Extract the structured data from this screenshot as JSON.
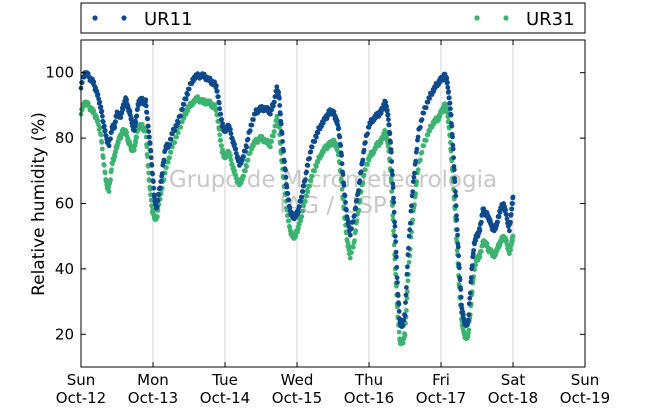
{
  "chart_data": {
    "type": "scatter",
    "title": "",
    "xlabel": "",
    "ylabel": "Relative humidity (%)",
    "ylim": [
      10,
      110
    ],
    "yticks": [
      20,
      40,
      60,
      80,
      100
    ],
    "x_unit": "days",
    "xlim": [
      0,
      7
    ],
    "xticks": [
      {
        "day": "Sun",
        "date": "Oct-12"
      },
      {
        "day": "Mon",
        "date": "Oct-13"
      },
      {
        "day": "Tue",
        "date": "Oct-14"
      },
      {
        "day": "Wed",
        "date": "Oct-15"
      },
      {
        "day": "Thu",
        "date": "Oct-16"
      },
      {
        "day": "Fri",
        "date": "Oct-17"
      },
      {
        "day": "Sat",
        "date": "Oct-18"
      },
      {
        "day": "Sun",
        "date": "Oct-19"
      }
    ],
    "grid": "vertical",
    "legend_placement": "top, outside plot",
    "watermark": [
      "Grupo de Micrometeorologia",
      "IAG / USP"
    ],
    "series": [
      {
        "name": "UR11",
        "color": "#0d4a8c",
        "points": [
          [
            0.0,
            96
          ],
          [
            0.05,
            100
          ],
          [
            0.1,
            99
          ],
          [
            0.17,
            97
          ],
          [
            0.22,
            94
          ],
          [
            0.27,
            90
          ],
          [
            0.31,
            85
          ],
          [
            0.35,
            80
          ],
          [
            0.39,
            78
          ],
          [
            0.43,
            83
          ],
          [
            0.47,
            84
          ],
          [
            0.5,
            88
          ],
          [
            0.54,
            86
          ],
          [
            0.58,
            89
          ],
          [
            0.62,
            92
          ],
          [
            0.66,
            89
          ],
          [
            0.7,
            86
          ],
          [
            0.73,
            82
          ],
          [
            0.76,
            85
          ],
          [
            0.79,
            90
          ],
          [
            0.83,
            92
          ],
          [
            0.87,
            91
          ],
          [
            0.9,
            91
          ],
          [
            0.93,
            84
          ],
          [
            0.96,
            78
          ],
          [
            0.99,
            70
          ],
          [
            1.02,
            62
          ],
          [
            1.05,
            58
          ],
          [
            1.08,
            63
          ],
          [
            1.12,
            68
          ],
          [
            1.17,
            77
          ],
          [
            1.22,
            78
          ],
          [
            1.28,
            82
          ],
          [
            1.35,
            85
          ],
          [
            1.42,
            90
          ],
          [
            1.48,
            94
          ],
          [
            1.55,
            98
          ],
          [
            1.62,
            99
          ],
          [
            1.7,
            99
          ],
          [
            1.77,
            98
          ],
          [
            1.83,
            97
          ],
          [
            1.88,
            96
          ],
          [
            1.92,
            90
          ],
          [
            1.96,
            84
          ],
          [
            2.0,
            82
          ],
          [
            2.05,
            84
          ],
          [
            2.1,
            80
          ],
          [
            2.15,
            76
          ],
          [
            2.2,
            72
          ],
          [
            2.25,
            74
          ],
          [
            2.3,
            78
          ],
          [
            2.36,
            84
          ],
          [
            2.43,
            88
          ],
          [
            2.5,
            89
          ],
          [
            2.57,
            89
          ],
          [
            2.63,
            88
          ],
          [
            2.68,
            91
          ],
          [
            2.72,
            95
          ],
          [
            2.75,
            93
          ],
          [
            2.78,
            84
          ],
          [
            2.82,
            74
          ],
          [
            2.86,
            65
          ],
          [
            2.9,
            58
          ],
          [
            2.94,
            56
          ],
          [
            2.98,
            56
          ],
          [
            3.02,
            58
          ],
          [
            3.06,
            62
          ],
          [
            3.1,
            66
          ],
          [
            3.15,
            72
          ],
          [
            3.2,
            77
          ],
          [
            3.27,
            81
          ],
          [
            3.33,
            84
          ],
          [
            3.4,
            86
          ],
          [
            3.45,
            88
          ],
          [
            3.5,
            88
          ],
          [
            3.54,
            86
          ],
          [
            3.58,
            83
          ],
          [
            3.62,
            74
          ],
          [
            3.66,
            63
          ],
          [
            3.7,
            55
          ],
          [
            3.74,
            51
          ],
          [
            3.79,
            56
          ],
          [
            3.84,
            62
          ],
          [
            3.89,
            70
          ],
          [
            3.94,
            78
          ],
          [
            4.0,
            84
          ],
          [
            4.06,
            86
          ],
          [
            4.12,
            87
          ],
          [
            4.17,
            88
          ],
          [
            4.22,
            91
          ],
          [
            4.25,
            89
          ],
          [
            4.28,
            84
          ],
          [
            4.31,
            75
          ],
          [
            4.34,
            62
          ],
          [
            4.37,
            48
          ],
          [
            4.4,
            33
          ],
          [
            4.43,
            24
          ],
          [
            4.46,
            22
          ],
          [
            4.5,
            26
          ],
          [
            4.54,
            44
          ],
          [
            4.59,
            60
          ],
          [
            4.64,
            72
          ],
          [
            4.69,
            82
          ],
          [
            4.76,
            88
          ],
          [
            4.83,
            92
          ],
          [
            4.9,
            95
          ],
          [
            4.96,
            97
          ],
          [
            5.01,
            98
          ],
          [
            5.05,
            99
          ],
          [
            5.08,
            98
          ],
          [
            5.11,
            93
          ],
          [
            5.14,
            87
          ],
          [
            5.17,
            76
          ],
          [
            5.2,
            64
          ],
          [
            5.23,
            50
          ],
          [
            5.26,
            38
          ],
          [
            5.29,
            28
          ],
          [
            5.32,
            24
          ],
          [
            5.35,
            23
          ],
          [
            5.38,
            24
          ],
          [
            5.42,
            38
          ],
          [
            5.46,
            48
          ],
          [
            5.5,
            50
          ],
          [
            5.54,
            52
          ],
          [
            5.58,
            58
          ],
          [
            5.62,
            57
          ],
          [
            5.66,
            56
          ],
          [
            5.7,
            53
          ],
          [
            5.74,
            52
          ],
          [
            5.78,
            54
          ],
          [
            5.82,
            58
          ],
          [
            5.87,
            60
          ],
          [
            5.91,
            56
          ],
          [
            5.95,
            52
          ],
          [
            5.98,
            58
          ],
          [
            6.0,
            62
          ]
        ]
      },
      {
        "name": "UR31",
        "color": "#3cb371",
        "points": [
          [
            0.0,
            88
          ],
          [
            0.05,
            91
          ],
          [
            0.1,
            90
          ],
          [
            0.17,
            88
          ],
          [
            0.22,
            86
          ],
          [
            0.27,
            82
          ],
          [
            0.31,
            74
          ],
          [
            0.35,
            66
          ],
          [
            0.39,
            64
          ],
          [
            0.43,
            72
          ],
          [
            0.47,
            75
          ],
          [
            0.5,
            78
          ],
          [
            0.54,
            80
          ],
          [
            0.58,
            82
          ],
          [
            0.62,
            82
          ],
          [
            0.66,
            79
          ],
          [
            0.7,
            77
          ],
          [
            0.73,
            76
          ],
          [
            0.76,
            79
          ],
          [
            0.79,
            83
          ],
          [
            0.83,
            84
          ],
          [
            0.87,
            83
          ],
          [
            0.9,
            82
          ],
          [
            0.93,
            72
          ],
          [
            0.96,
            64
          ],
          [
            0.99,
            58
          ],
          [
            1.02,
            56
          ],
          [
            1.05,
            55
          ],
          [
            1.08,
            60
          ],
          [
            1.12,
            64
          ],
          [
            1.17,
            70
          ],
          [
            1.22,
            74
          ],
          [
            1.28,
            78
          ],
          [
            1.35,
            82
          ],
          [
            1.42,
            86
          ],
          [
            1.48,
            89
          ],
          [
            1.55,
            91
          ],
          [
            1.62,
            92
          ],
          [
            1.7,
            91
          ],
          [
            1.77,
            91
          ],
          [
            1.83,
            90
          ],
          [
            1.88,
            89
          ],
          [
            1.92,
            82
          ],
          [
            1.96,
            76
          ],
          [
            2.0,
            74
          ],
          [
            2.05,
            76
          ],
          [
            2.1,
            72
          ],
          [
            2.15,
            68
          ],
          [
            2.2,
            66
          ],
          [
            2.25,
            68
          ],
          [
            2.3,
            72
          ],
          [
            2.36,
            77
          ],
          [
            2.43,
            79
          ],
          [
            2.5,
            80
          ],
          [
            2.57,
            79
          ],
          [
            2.63,
            78
          ],
          [
            2.68,
            82
          ],
          [
            2.72,
            86
          ],
          [
            2.75,
            84
          ],
          [
            2.78,
            75
          ],
          [
            2.82,
            66
          ],
          [
            2.86,
            58
          ],
          [
            2.9,
            52
          ],
          [
            2.94,
            50
          ],
          [
            2.98,
            50
          ],
          [
            3.02,
            53
          ],
          [
            3.06,
            56
          ],
          [
            3.1,
            60
          ],
          [
            3.15,
            64
          ],
          [
            3.2,
            68
          ],
          [
            3.27,
            72
          ],
          [
            3.33,
            75
          ],
          [
            3.4,
            77
          ],
          [
            3.45,
            78
          ],
          [
            3.5,
            79
          ],
          [
            3.54,
            78
          ],
          [
            3.58,
            75
          ],
          [
            3.62,
            66
          ],
          [
            3.66,
            56
          ],
          [
            3.7,
            48
          ],
          [
            3.74,
            44
          ],
          [
            3.79,
            48
          ],
          [
            3.84,
            56
          ],
          [
            3.89,
            64
          ],
          [
            3.94,
            70
          ],
          [
            4.0,
            74
          ],
          [
            4.06,
            76
          ],
          [
            4.12,
            78
          ],
          [
            4.17,
            79
          ],
          [
            4.22,
            82
          ],
          [
            4.25,
            80
          ],
          [
            4.28,
            76
          ],
          [
            4.31,
            66
          ],
          [
            4.34,
            52
          ],
          [
            4.37,
            38
          ],
          [
            4.4,
            26
          ],
          [
            4.43,
            18
          ],
          [
            4.46,
            17
          ],
          [
            4.5,
            20
          ],
          [
            4.54,
            36
          ],
          [
            4.59,
            52
          ],
          [
            4.64,
            62
          ],
          [
            4.69,
            72
          ],
          [
            4.76,
            78
          ],
          [
            4.83,
            82
          ],
          [
            4.9,
            85
          ],
          [
            4.96,
            86
          ],
          [
            5.01,
            88
          ],
          [
            5.05,
            90
          ],
          [
            5.08,
            89
          ],
          [
            5.11,
            84
          ],
          [
            5.14,
            76
          ],
          [
            5.17,
            66
          ],
          [
            5.2,
            56
          ],
          [
            5.23,
            44
          ],
          [
            5.26,
            32
          ],
          [
            5.29,
            24
          ],
          [
            5.32,
            20
          ],
          [
            5.35,
            19
          ],
          [
            5.38,
            20
          ],
          [
            5.42,
            30
          ],
          [
            5.46,
            40
          ],
          [
            5.5,
            43
          ],
          [
            5.54,
            44
          ],
          [
            5.58,
            48
          ],
          [
            5.62,
            48
          ],
          [
            5.66,
            46
          ],
          [
            5.7,
            45
          ],
          [
            5.74,
            44
          ],
          [
            5.78,
            46
          ],
          [
            5.82,
            48
          ],
          [
            5.87,
            50
          ],
          [
            5.91,
            48
          ],
          [
            5.95,
            45
          ],
          [
            5.98,
            48
          ],
          [
            6.0,
            50
          ]
        ]
      }
    ]
  }
}
